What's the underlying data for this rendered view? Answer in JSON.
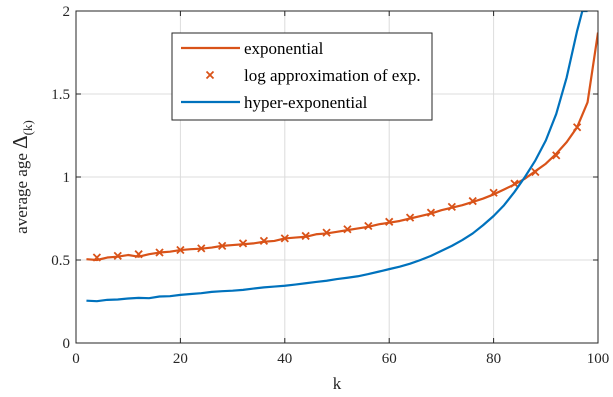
{
  "chart_data": {
    "type": "line",
    "xlabel": "k",
    "ylabel": "average age Δ(k)",
    "ylabel_parts": {
      "text": "average age ",
      "symbol": "Δ",
      "subscript": "(k)"
    },
    "xlim": [
      0,
      100
    ],
    "ylim": [
      0,
      2
    ],
    "xticks": [
      0,
      20,
      40,
      60,
      80,
      100
    ],
    "yticks": [
      0,
      0.5,
      1,
      1.5,
      2
    ],
    "ytick_labels": [
      "0",
      "0.5",
      "1",
      "1.5",
      "2"
    ],
    "grid": true,
    "legend_position": "top-center",
    "series": [
      {
        "name": "exponential",
        "style": "line",
        "color": "#D95319",
        "x": [
          2,
          4,
          6,
          8,
          10,
          12,
          14,
          16,
          18,
          20,
          22,
          24,
          26,
          28,
          30,
          32,
          34,
          36,
          38,
          40,
          42,
          44,
          46,
          48,
          50,
          52,
          54,
          56,
          58,
          60,
          62,
          64,
          66,
          68,
          70,
          72,
          74,
          76,
          78,
          80,
          82,
          84,
          86,
          88,
          90,
          92,
          94,
          96,
          98,
          100
        ],
        "y": [
          0.505,
          0.5,
          0.515,
          0.52,
          0.53,
          0.52,
          0.535,
          0.545,
          0.55,
          0.56,
          0.565,
          0.568,
          0.575,
          0.585,
          0.59,
          0.595,
          0.6,
          0.61,
          0.615,
          0.63,
          0.635,
          0.64,
          0.655,
          0.66,
          0.67,
          0.68,
          0.69,
          0.7,
          0.715,
          0.725,
          0.735,
          0.75,
          0.765,
          0.78,
          0.8,
          0.815,
          0.83,
          0.85,
          0.87,
          0.895,
          0.925,
          0.955,
          0.99,
          1.035,
          1.08,
          1.14,
          1.21,
          1.3,
          1.45,
          1.87
        ]
      },
      {
        "name": "log approximation of exp.",
        "style": "marker",
        "marker": "x",
        "color": "#D95319",
        "x": [
          4,
          8,
          12,
          16,
          20,
          24,
          28,
          32,
          36,
          40,
          44,
          48,
          52,
          56,
          60,
          64,
          68,
          72,
          76,
          80,
          84,
          88,
          92,
          96
        ],
        "y": [
          0.515,
          0.525,
          0.535,
          0.545,
          0.56,
          0.57,
          0.585,
          0.6,
          0.615,
          0.63,
          0.645,
          0.665,
          0.685,
          0.705,
          0.73,
          0.755,
          0.785,
          0.82,
          0.855,
          0.905,
          0.96,
          1.03,
          1.13,
          1.3
        ]
      },
      {
        "name": "hyper-exponential",
        "style": "line",
        "color": "#0072BD",
        "x": [
          2,
          4,
          6,
          8,
          10,
          12,
          14,
          16,
          18,
          20,
          22,
          24,
          26,
          28,
          30,
          32,
          34,
          36,
          38,
          40,
          42,
          44,
          46,
          48,
          50,
          52,
          54,
          56,
          58,
          60,
          62,
          64,
          66,
          68,
          70,
          72,
          74,
          76,
          78,
          80,
          82,
          84,
          86,
          88,
          90,
          92,
          94,
          96,
          97,
          98
        ],
        "y": [
          0.255,
          0.252,
          0.26,
          0.262,
          0.268,
          0.272,
          0.27,
          0.28,
          0.282,
          0.29,
          0.295,
          0.3,
          0.308,
          0.312,
          0.315,
          0.32,
          0.328,
          0.335,
          0.34,
          0.345,
          0.352,
          0.36,
          0.368,
          0.375,
          0.385,
          0.393,
          0.402,
          0.415,
          0.43,
          0.445,
          0.46,
          0.478,
          0.5,
          0.525,
          0.555,
          0.585,
          0.62,
          0.66,
          0.71,
          0.765,
          0.83,
          0.91,
          1.0,
          1.1,
          1.22,
          1.38,
          1.6,
          1.88,
          2.0,
          2.0
        ]
      }
    ]
  }
}
